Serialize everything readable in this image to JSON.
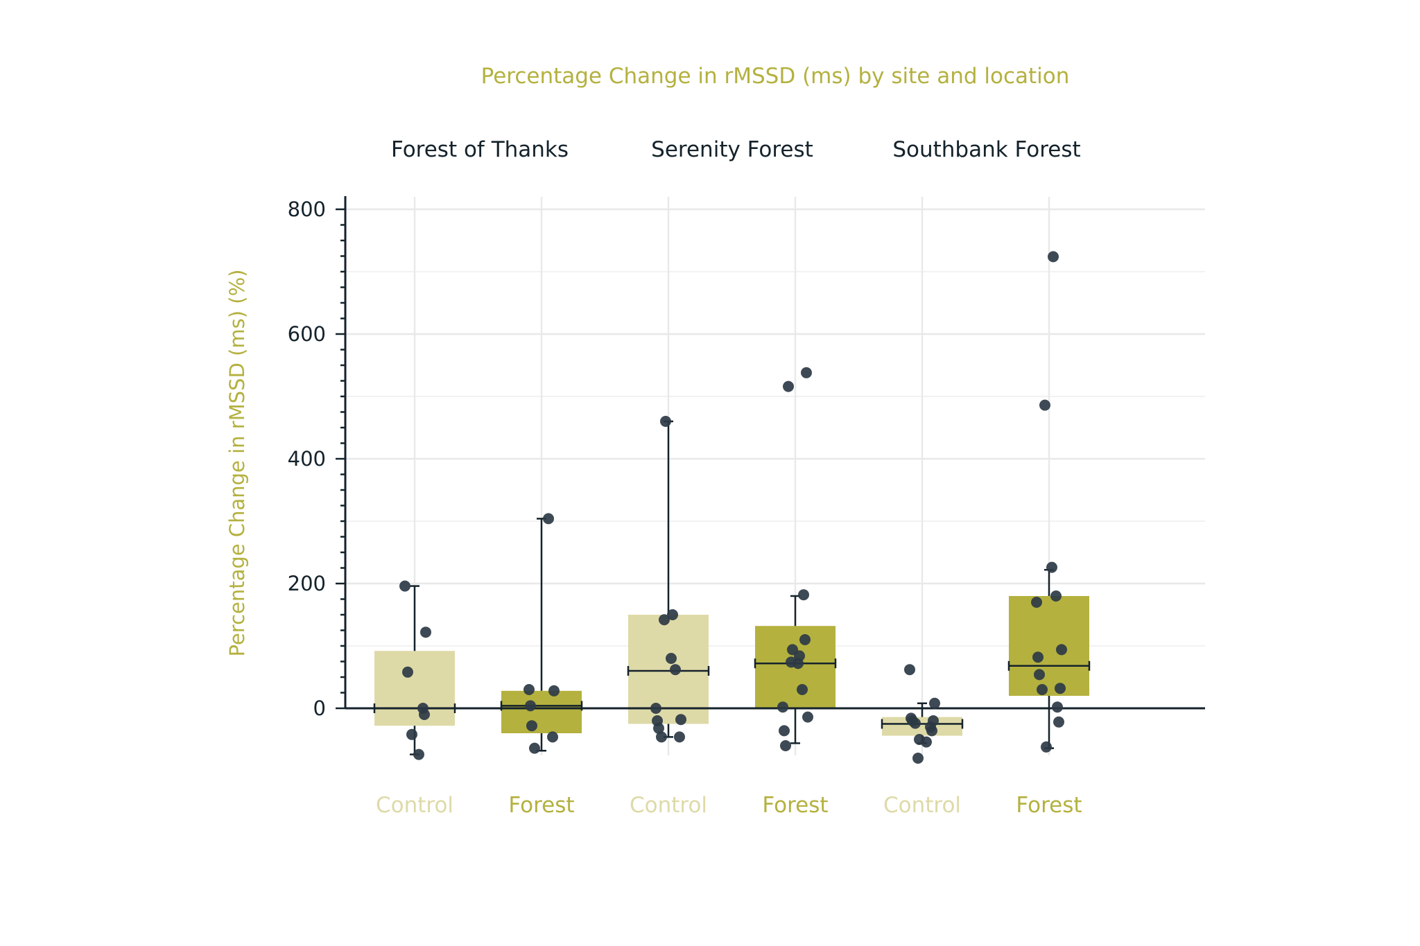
{
  "chart_data": {
    "type": "box",
    "title": "Percentage Change in rMSSD (ms) by site and location",
    "ylabel": "Percentage Change in rMSSD (ms) (%)",
    "xlabel": "",
    "ylim": [
      -140,
      820
    ],
    "yticks": [
      0,
      200,
      400,
      600,
      800
    ],
    "grid": true,
    "colors": {
      "Control": "#dedaa8",
      "Forest": "#b4b13f",
      "points": "#2c3a45",
      "axis": "#14222b"
    },
    "sites": [
      "Forest of Thanks",
      "Serenity Forest",
      "Southbank Forest"
    ],
    "groups": [
      {
        "site": "Forest of Thanks",
        "location": "Control",
        "q1": -28,
        "median": 0,
        "q3": 92,
        "whisker_low": -74,
        "whisker_high": 196,
        "points": [
          196,
          122,
          58,
          0,
          -10,
          -42,
          -74
        ]
      },
      {
        "site": "Forest of Thanks",
        "location": "Forest",
        "q1": -40,
        "median": 4,
        "q3": 28,
        "whisker_low": -68,
        "whisker_high": 304,
        "points": [
          304,
          30,
          28,
          4,
          -28,
          -46,
          -64
        ]
      },
      {
        "site": "Serenity Forest",
        "location": "Control",
        "q1": -25,
        "median": 60,
        "q3": 150,
        "whisker_low": -46,
        "whisker_high": 460,
        "points": [
          460,
          150,
          142,
          80,
          62,
          0,
          -18,
          -20,
          -32,
          -46,
          -46
        ]
      },
      {
        "site": "Serenity Forest",
        "location": "Forest",
        "q1": 0,
        "median": 72,
        "q3": 132,
        "whisker_low": -56,
        "whisker_high": 180,
        "points": [
          538,
          516,
          182,
          110,
          94,
          84,
          74,
          72,
          30,
          2,
          -14,
          -36,
          -60
        ]
      },
      {
        "site": "Southbank Forest",
        "location": "Control",
        "q1": -44,
        "median": -25,
        "q3": -14,
        "whisker_low": -56,
        "whisker_high": 8,
        "points": [
          62,
          8,
          -16,
          -20,
          -20,
          -24,
          -30,
          -36,
          -50,
          -54,
          -80
        ]
      },
      {
        "site": "Southbank Forest",
        "location": "Forest",
        "q1": 20,
        "median": 68,
        "q3": 180,
        "whisker_low": -64,
        "whisker_high": 222,
        "points": [
          724,
          486,
          226,
          180,
          170,
          94,
          82,
          54,
          32,
          30,
          2,
          -22,
          -62
        ]
      }
    ]
  }
}
